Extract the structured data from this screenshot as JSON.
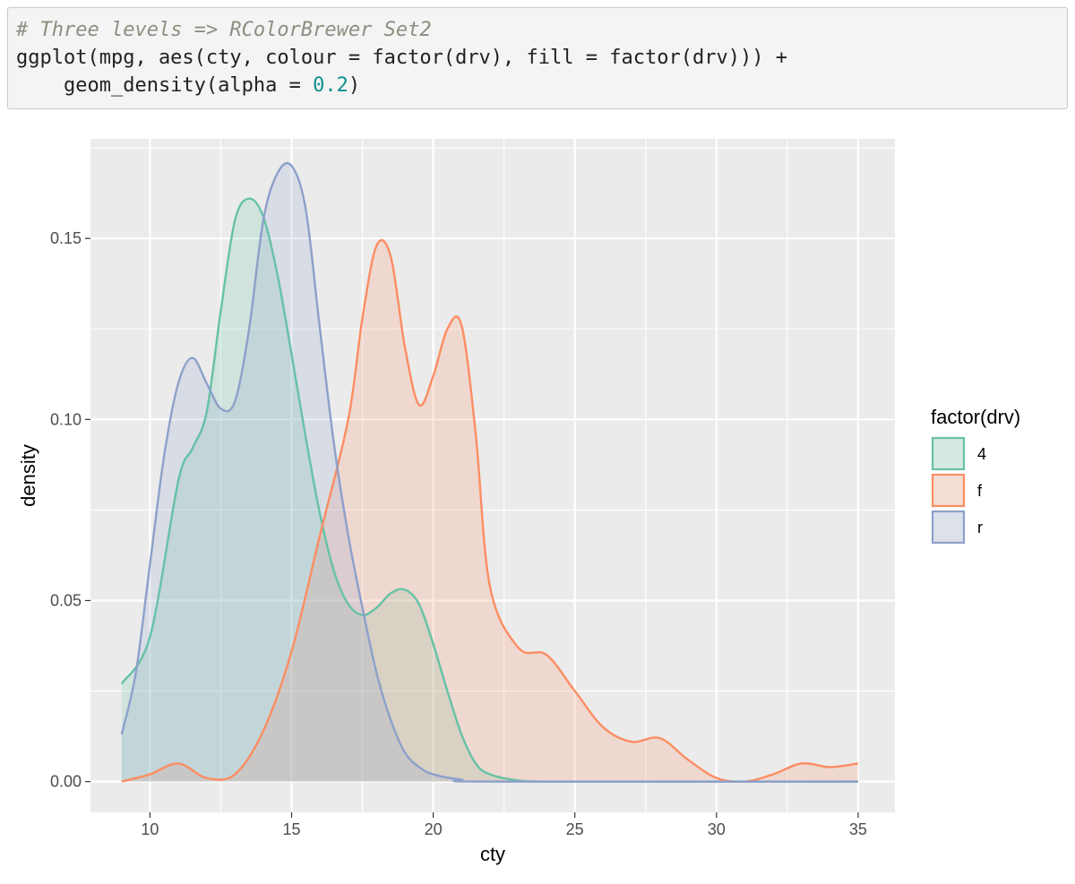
{
  "code": {
    "lines": [
      [
        {
          "t": "# Three levels => RColorBrewer Set2",
          "c": "comment"
        }
      ],
      [
        {
          "t": "ggplot(mpg, aes(cty, colour = factor(drv), fill = factor(drv))) +",
          "c": "plain"
        }
      ],
      [
        {
          "t": "    geom_density(alpha = ",
          "c": "plain"
        },
        {
          "t": "0.2",
          "c": "num"
        },
        {
          "t": ")",
          "c": "plain"
        }
      ]
    ]
  },
  "chart_data": {
    "type": "area",
    "xlabel": "cty",
    "ylabel": "density",
    "xlim": [
      7.9,
      36.3
    ],
    "ylim": [
      -0.0085,
      0.1775
    ],
    "x_ticks": [
      10,
      15,
      20,
      25,
      30,
      35
    ],
    "y_ticks": [
      0.0,
      0.05,
      0.1,
      0.15
    ],
    "y_tick_labels": [
      "0.00",
      "0.05",
      "0.10",
      "0.15"
    ],
    "grid": true,
    "fill_alpha": 0.2,
    "legend": {
      "title": "factor(drv)",
      "position": "right",
      "entries": [
        {
          "label": "4",
          "color": "#66c2a5"
        },
        {
          "label": "f",
          "color": "#fc8d62"
        },
        {
          "label": "r",
          "color": "#8da0cb"
        }
      ]
    },
    "series": [
      {
        "name": "4",
        "color": "#66c2a5",
        "x": [
          9,
          10,
          11,
          11.5,
          12,
          12.5,
          13,
          13.5,
          14,
          14.5,
          15,
          15.5,
          16,
          16.5,
          17,
          17.5,
          18,
          18.5,
          19,
          19.5,
          20,
          20.5,
          21,
          21.5,
          22,
          23,
          24,
          25,
          35
        ],
        "y": [
          0.027,
          0.04,
          0.083,
          0.092,
          0.102,
          0.13,
          0.155,
          0.161,
          0.156,
          0.14,
          0.118,
          0.095,
          0.074,
          0.058,
          0.049,
          0.046,
          0.048,
          0.052,
          0.053,
          0.049,
          0.038,
          0.025,
          0.013,
          0.005,
          0.002,
          0.0003,
          0.0,
          0.0,
          0.0
        ]
      },
      {
        "name": "f",
        "color": "#fc8d62",
        "x": [
          9,
          10,
          11,
          12,
          13,
          14,
          15,
          16,
          17,
          17.5,
          18,
          18.5,
          19,
          19.5,
          20,
          20.5,
          21,
          21.5,
          22,
          23,
          24,
          25,
          26,
          27,
          28,
          29,
          30,
          31,
          32,
          33,
          34,
          35
        ],
        "y": [
          0.0,
          0.002,
          0.005,
          0.001,
          0.002,
          0.014,
          0.036,
          0.068,
          0.1,
          0.128,
          0.148,
          0.145,
          0.12,
          0.104,
          0.112,
          0.125,
          0.126,
          0.096,
          0.054,
          0.037,
          0.035,
          0.025,
          0.015,
          0.011,
          0.012,
          0.006,
          0.001,
          0.0,
          0.002,
          0.005,
          0.004,
          0.005
        ]
      },
      {
        "name": "r",
        "color": "#8da0cb",
        "x": [
          9,
          9.5,
          10,
          10.5,
          11,
          11.5,
          12,
          12.5,
          13,
          13.5,
          14,
          14.5,
          15,
          15.5,
          16,
          16.5,
          17,
          17.5,
          18,
          18.5,
          19,
          19.5,
          20,
          21,
          22,
          35
        ],
        "y": [
          0.013,
          0.03,
          0.06,
          0.09,
          0.11,
          0.117,
          0.11,
          0.103,
          0.105,
          0.125,
          0.155,
          0.168,
          0.17,
          0.158,
          0.125,
          0.093,
          0.068,
          0.048,
          0.03,
          0.017,
          0.008,
          0.004,
          0.002,
          0.0005,
          0.0,
          0.0
        ]
      }
    ]
  }
}
